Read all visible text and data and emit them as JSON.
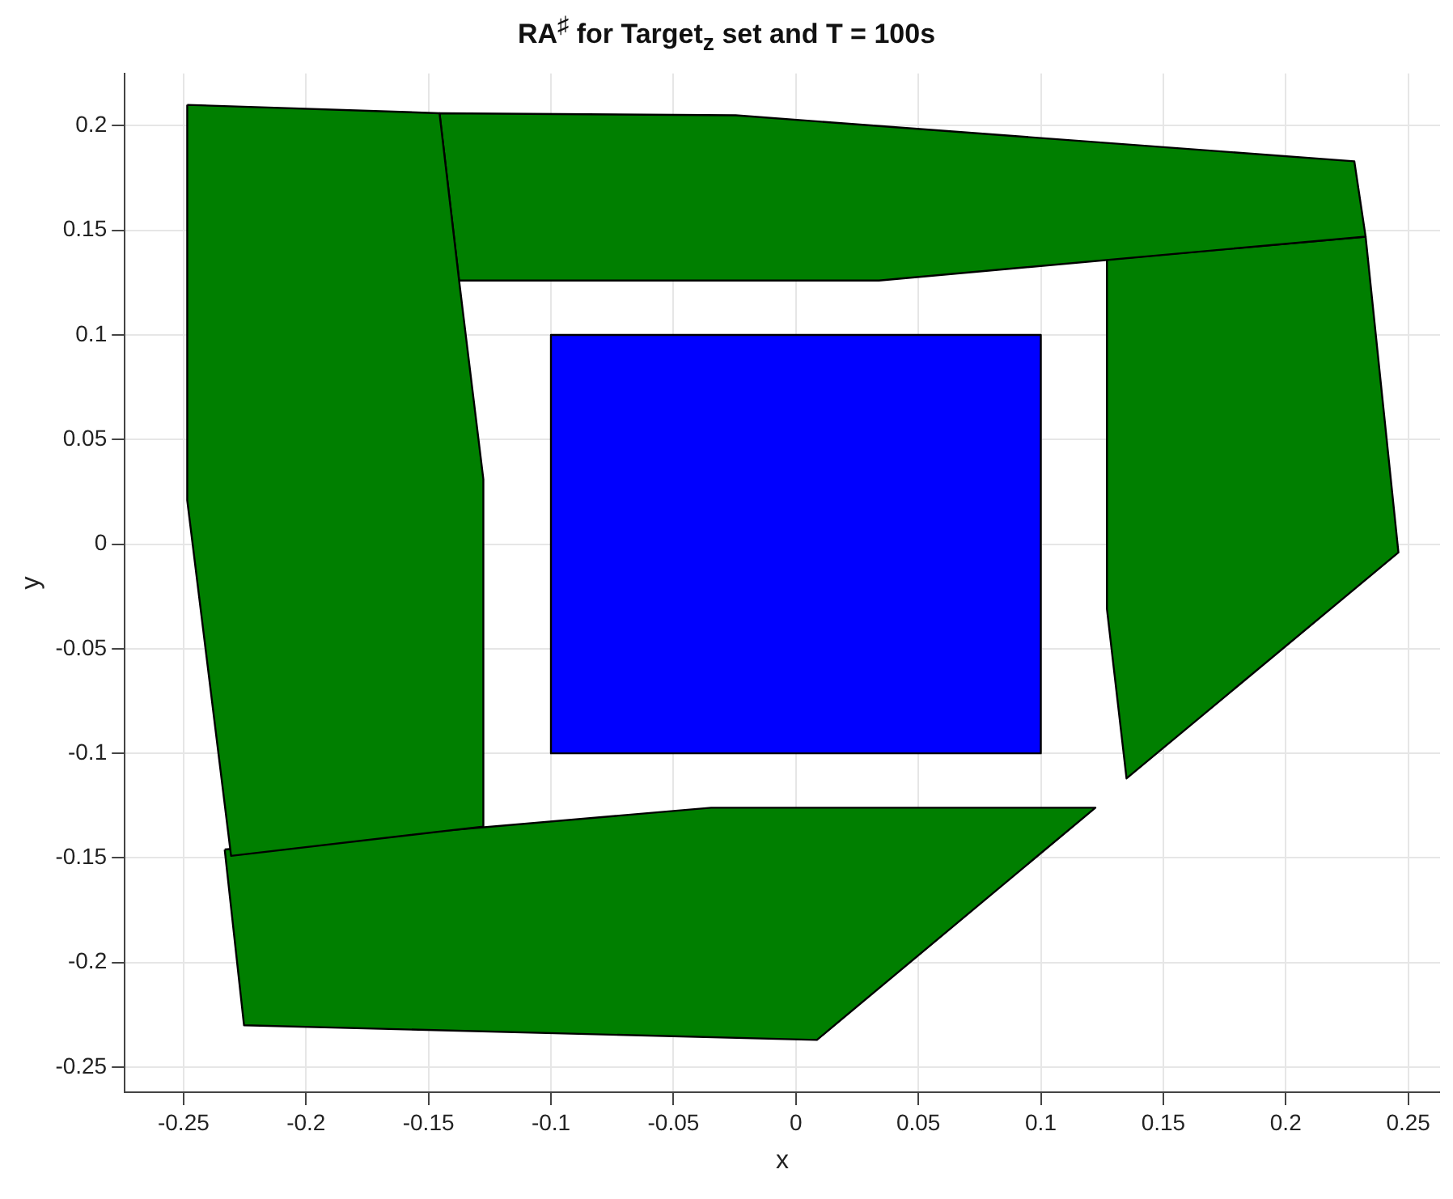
{
  "chart_data": {
    "type": "area",
    "title": "RA$^{♯}$ for Target$_{z}$ set and T = 100s",
    "xlabel": "x",
    "ylabel": "y",
    "xlim": [
      -0.274,
      0.263
    ],
    "ylim": [
      -0.262,
      0.225
    ],
    "xticks": [
      -0.25,
      -0.2,
      -0.15,
      -0.1,
      -0.05,
      0,
      0.05,
      0.1,
      0.15,
      0.2,
      0.25
    ],
    "yticks": [
      -0.25,
      -0.2,
      -0.15,
      -0.1,
      -0.05,
      0,
      0.05,
      0.1,
      0.15,
      0.2
    ],
    "grid": true,
    "series": [
      {
        "color": "#007f00",
        "x": [
          -0.2485,
          -0.1455,
          -0.1375,
          -0.1276,
          -0.1276,
          -0.2306,
          -0.2485,
          -0.2485
        ],
        "values": [
          0.21,
          0.206,
          0.126,
          0.031,
          -0.135,
          -0.149,
          0.021,
          0.21
        ]
      },
      {
        "color": "#007f00",
        "x": [
          -0.1455,
          -0.0246,
          0.228,
          0.2326,
          0.0339,
          -0.1375,
          -0.1455
        ],
        "values": [
          0.206,
          0.205,
          0.183,
          0.147,
          0.126,
          0.126,
          0.206
        ]
      },
      {
        "color": "#007f00",
        "x": [
          0.127,
          0.2326,
          0.246,
          0.135,
          0.127,
          0.127
        ],
        "values": [
          0.136,
          0.147,
          -0.004,
          -0.112,
          -0.031,
          0.136
        ]
      },
      {
        "color": "#007f00",
        "x": [
          -0.2332,
          -0.0346,
          0.1223,
          0.0086,
          -0.2253,
          -0.2332
        ],
        "values": [
          -0.146,
          -0.126,
          -0.126,
          -0.237,
          -0.23,
          -0.146
        ]
      },
      {
        "color": "#0000ff",
        "x": [
          -0.1,
          0.1,
          0.1,
          -0.1,
          -0.1
        ],
        "values": [
          -0.1,
          -0.1,
          0.1,
          0.1,
          -0.1
        ]
      }
    ]
  }
}
